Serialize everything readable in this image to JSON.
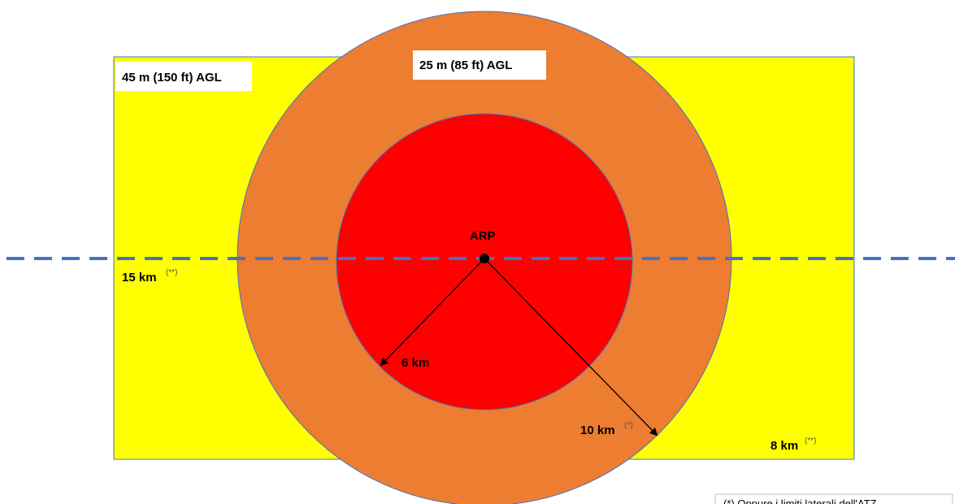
{
  "colors": {
    "outer_zone": "#ffff00",
    "middle_zone": "#ed7d31",
    "inner_zone": "#ff0000",
    "axis_line": "#4472c4",
    "zone_border": "#4472c4"
  },
  "labels": {
    "outer_height": "45 m (150 ft) AGL",
    "middle_height": "25 m (85 ft) AGL",
    "center": "ARP",
    "inner_radius": "6 km",
    "middle_radius": "10 km",
    "middle_radius_mark": "(*)",
    "left_extent": "15 km",
    "left_extent_mark": "(**)",
    "lateral_extent": "8 km",
    "lateral_extent_mark": "(**)"
  },
  "footnote": {
    "text": "(*) Oppure i limiti laterali dell'ATZ"
  }
}
